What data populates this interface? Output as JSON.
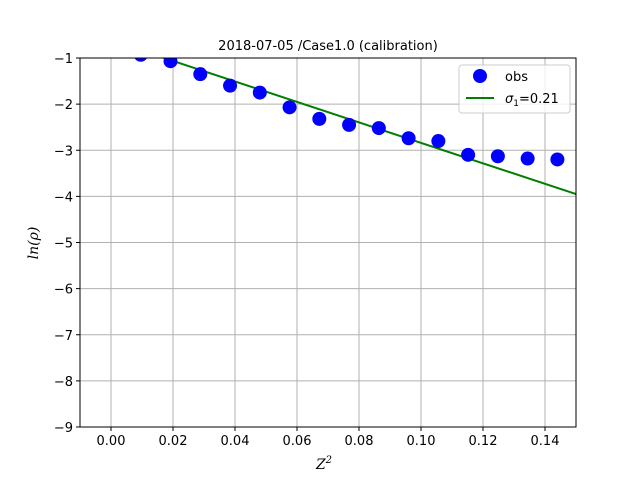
{
  "chart_data": {
    "type": "scatter",
    "title": "2018-07-05 /Case1.0 (calibration)",
    "xlabel": "Z",
    "xlabel_sup": "2",
    "ylabel": "ln(ρ)",
    "xlim": [
      -0.01,
      0.15
    ],
    "ylim": [
      -9,
      -1
    ],
    "x_ticks": [
      0.0,
      0.02,
      0.04,
      0.06,
      0.08,
      0.1,
      0.12,
      0.14
    ],
    "x_tick_labels": [
      "0.00",
      "0.02",
      "0.04",
      "0.06",
      "0.08",
      "0.10",
      "0.12",
      "0.14"
    ],
    "y_ticks": [
      -9,
      -8,
      -7,
      -6,
      -5,
      -4,
      -3,
      -2,
      -1
    ],
    "y_tick_labels": [
      "−9",
      "−8",
      "−7",
      "−6",
      "−5",
      "−4",
      "−3",
      "−2",
      "−1"
    ],
    "grid": true,
    "legend_position": "top-right",
    "series": [
      {
        "name": "obs",
        "kind": "scatter",
        "color": "#0000ff",
        "points": [
          {
            "x": 0.0096,
            "y": -0.93
          },
          {
            "x": 0.0192,
            "y": -1.07
          },
          {
            "x": 0.0288,
            "y": -1.35
          },
          {
            "x": 0.0384,
            "y": -1.6
          },
          {
            "x": 0.048,
            "y": -1.75
          },
          {
            "x": 0.0576,
            "y": -2.07
          },
          {
            "x": 0.0672,
            "y": -2.32
          },
          {
            "x": 0.0768,
            "y": -2.45
          },
          {
            "x": 0.0864,
            "y": -2.52
          },
          {
            "x": 0.096,
            "y": -2.74
          },
          {
            "x": 0.1056,
            "y": -2.8
          },
          {
            "x": 0.1152,
            "y": -3.1
          },
          {
            "x": 0.1248,
            "y": -3.13
          },
          {
            "x": 0.1344,
            "y": -3.18
          },
          {
            "x": 0.144,
            "y": -3.2
          }
        ]
      },
      {
        "name_prefix": "σ",
        "name_sub": "1",
        "name_suffix": "=0.21",
        "kind": "line",
        "color": "#008000",
        "points": [
          {
            "x": 0.0,
            "y": -0.62
          },
          {
            "x": 0.15,
            "y": -3.95
          }
        ]
      }
    ]
  }
}
